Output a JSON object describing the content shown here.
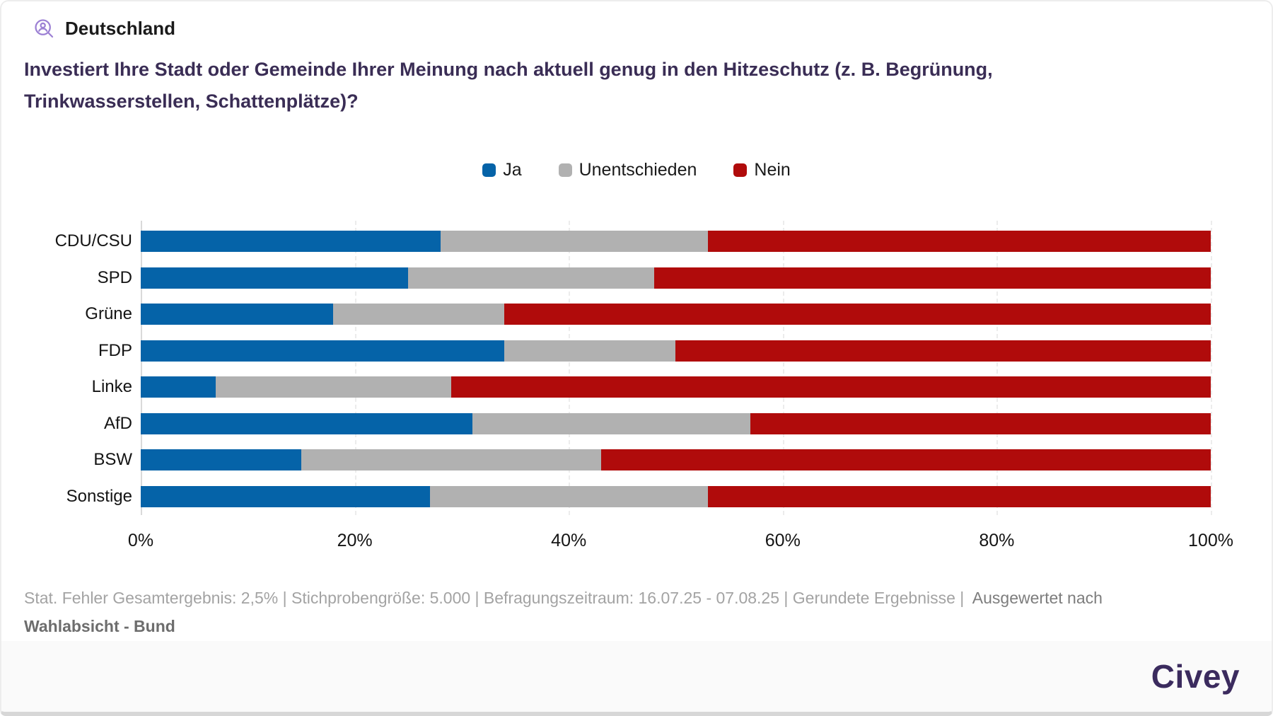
{
  "header": {
    "icon": "person-search-icon",
    "region": "Deutschland"
  },
  "question": "Investiert Ihre Stadt oder Gemeinde Ihrer Meinung nach aktuell genug in den Hitzeschutz (z. B. Begrünung, Trinkwasserstellen, Schattenplätze)?",
  "chart_data": {
    "type": "bar",
    "orientation": "horizontal",
    "stacked": true,
    "title": "Investiert Ihre Stadt oder Gemeinde Ihrer Meinung nach aktuell genug in den Hitzeschutz (z. B. Begrünung, Trinkwasserstellen, Schattenplätze)?",
    "categories": [
      "CDU/CSU",
      "SPD",
      "Grüne",
      "FDP",
      "Linke",
      "AfD",
      "BSW",
      "Sonstige"
    ],
    "series": [
      {
        "name": "Ja",
        "color": "#0563a8",
        "values": [
          28,
          25,
          18,
          34,
          7,
          31,
          15,
          27
        ]
      },
      {
        "name": "Unentschieden",
        "color": "#b1b1b1",
        "values": [
          25,
          23,
          16,
          16,
          22,
          26,
          28,
          26
        ]
      },
      {
        "name": "Nein",
        "color": "#b00b0b",
        "values": [
          47,
          52,
          66,
          50,
          71,
          43,
          57,
          47
        ]
      }
    ],
    "x_tick_labels": [
      "0%",
      "20%",
      "40%",
      "60%",
      "80%",
      "100%"
    ],
    "x_tick_values": [
      0,
      20,
      40,
      60,
      80,
      100
    ],
    "xlim": [
      0,
      100
    ],
    "unit": "percent",
    "grid": "vertical-dashed",
    "legend_position": "top-center"
  },
  "footer": {
    "stats_plain": "Stat. Fehler Gesamtergebnis: 2,5% | Stichprobengröße: 5.000 | Befragungszeitraum: 16.07.25 - 07.08.25 | Gerundete Ergebnisse |  ",
    "stats_emphasis": "Ausgewertet nach ",
    "stats_bold": "Wahlabsicht - Bund",
    "brand": "Civey"
  },
  "colors": {
    "ja": "#0563a8",
    "unentschieden": "#b1b1b1",
    "nein": "#b00b0b",
    "question_text": "#3a2d55",
    "brand_purple": "#3b2b5e",
    "icon_purple": "#9c80d4"
  }
}
